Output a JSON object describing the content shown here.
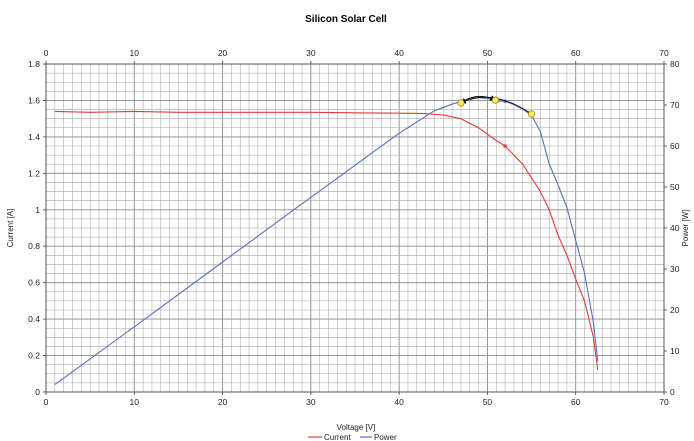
{
  "chart_data": {
    "type": "line",
    "title": "Silicon Solar Cell",
    "xlabel": "Voltage [V]",
    "ylabel_left": "Current [A]",
    "ylabel_right": "Power [W]",
    "xlim": [
      0,
      70
    ],
    "ylim_left": [
      0,
      1.8
    ],
    "ylim_right": [
      0,
      80
    ],
    "x_ticks": [
      "0",
      "10",
      "20",
      "30",
      "40",
      "50",
      "60",
      "70"
    ],
    "y_left_ticks": [
      "0",
      "0.2",
      "0.4",
      "0.6",
      "0.8",
      "1",
      "1.2",
      "1.4",
      "1.6",
      "1.8"
    ],
    "y_right_ticks": [
      "0",
      "10",
      "20",
      "30",
      "40",
      "50",
      "60",
      "70",
      "80"
    ],
    "grid": true,
    "legend_placement": "bottom",
    "series": [
      {
        "name": "Current",
        "axis": "left",
        "color": "#e03c3c",
        "x": [
          1,
          5,
          10,
          15,
          20,
          25,
          30,
          35,
          40,
          43,
          45,
          47,
          49,
          51,
          52,
          54,
          56,
          57,
          58,
          59,
          60,
          61,
          62,
          62.5
        ],
        "y": [
          1.54,
          1.535,
          1.54,
          1.535,
          1.535,
          1.535,
          1.535,
          1.532,
          1.53,
          1.528,
          1.52,
          1.5,
          1.45,
          1.38,
          1.35,
          1.25,
          1.1,
          1.0,
          0.86,
          0.75,
          0.62,
          0.5,
          0.3,
          0.12
        ]
      },
      {
        "name": "Power",
        "axis": "right",
        "color": "#5a6fc2",
        "x": [
          1,
          10,
          20,
          30,
          40,
          44,
          46,
          48,
          49,
          50,
          51,
          52,
          53,
          54,
          55,
          56,
          57,
          58,
          59,
          60,
          61,
          62,
          62.5
        ],
        "y": [
          1.8,
          15.9,
          31.7,
          47.5,
          63.1,
          68.6,
          70.2,
          71.6,
          71.8,
          71.6,
          71.0,
          70.9,
          70.1,
          69.0,
          67.5,
          63.5,
          55.6,
          50.5,
          45.0,
          37.0,
          29.0,
          17.0,
          7.5
        ]
      }
    ],
    "markers": [
      {
        "axis": "right",
        "x": 47.0,
        "y": 70.5,
        "color": "#ffef55"
      },
      {
        "axis": "right",
        "x": 50.9,
        "y": 71.2,
        "color": "#ffef55"
      },
      {
        "axis": "right",
        "x": 55.0,
        "y": 67.8,
        "color": "#ffef55"
      }
    ],
    "arrows": [
      {
        "axis": "right",
        "from": [
          55.0,
          67.8
        ],
        "to": [
          47.0,
          70.5
        ],
        "peak": [
          50.5,
          80.0
        ]
      },
      {
        "axis": "right",
        "from": [
          47.0,
          70.5
        ],
        "to": [
          50.9,
          71.2
        ],
        "peak": [
          48.8,
          76.5
        ]
      }
    ]
  }
}
